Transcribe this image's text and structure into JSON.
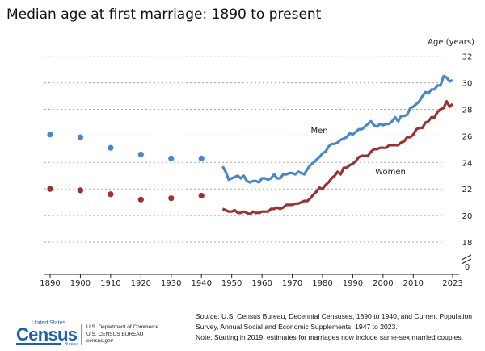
{
  "chart_data": {
    "type": "line",
    "title": "Median age at first marriage: 1890 to present",
    "ylabel": "Age (years)",
    "ylim": [
      0,
      32
    ],
    "y_break": [
      0,
      18
    ],
    "yticks": [
      0,
      18,
      20,
      22,
      24,
      26,
      28,
      30,
      32
    ],
    "xticks": [
      "1890",
      "1900",
      "1910",
      "1920",
      "1930",
      "1940",
      "1950",
      "1960",
      "1970",
      "1980",
      "1990",
      "2000",
      "2010",
      "2023"
    ],
    "grid": true,
    "series": [
      {
        "name": "Men",
        "color": "#4a86c8",
        "decennial": {
          "x": [
            1890,
            1900,
            1910,
            1920,
            1930,
            1940
          ],
          "y": [
            26.1,
            25.9,
            25.1,
            24.6,
            24.3,
            24.3
          ]
        },
        "annual_start": 1947,
        "annual": [
          23.7,
          23.3,
          22.7,
          22.8,
          22.9,
          23.0,
          22.8,
          23.0,
          22.6,
          22.5,
          22.6,
          22.6,
          22.5,
          22.8,
          22.8,
          22.7,
          22.8,
          23.1,
          22.8,
          22.8,
          23.1,
          23.1,
          23.2,
          23.2,
          23.1,
          23.3,
          23.2,
          23.1,
          23.5,
          23.8,
          24.0,
          24.2,
          24.4,
          24.7,
          24.8,
          25.2,
          25.4,
          25.4,
          25.5,
          25.7,
          25.8,
          25.9,
          26.2,
          26.1,
          26.3,
          26.5,
          26.5,
          26.7,
          26.9,
          27.1,
          26.8,
          26.7,
          26.9,
          26.8,
          26.9,
          26.9,
          27.1,
          27.4,
          27.1,
          27.5,
          27.5,
          27.6,
          28.1,
          28.2,
          28.4,
          28.6,
          29.0,
          29.3,
          29.2,
          29.5,
          29.5,
          29.8,
          29.8,
          30.5,
          30.4,
          30.1,
          30.2
        ]
      },
      {
        "name": "Women",
        "color": "#9b3232",
        "decennial": {
          "x": [
            1890,
            1900,
            1910,
            1920,
            1930,
            1940
          ],
          "y": [
            22.0,
            21.9,
            21.6,
            21.2,
            21.3,
            21.5
          ]
        },
        "annual_start": 1947,
        "annual": [
          20.5,
          20.4,
          20.3,
          20.3,
          20.4,
          20.2,
          20.2,
          20.3,
          20.2,
          20.1,
          20.3,
          20.2,
          20.2,
          20.3,
          20.3,
          20.3,
          20.5,
          20.5,
          20.6,
          20.5,
          20.6,
          20.8,
          20.8,
          20.8,
          20.9,
          20.9,
          21.0,
          21.1,
          21.1,
          21.3,
          21.6,
          21.8,
          22.1,
          22.0,
          22.3,
          22.5,
          22.8,
          23.0,
          23.3,
          23.1,
          23.6,
          23.6,
          23.8,
          23.9,
          24.1,
          24.4,
          24.5,
          24.5,
          24.5,
          24.8,
          25.0,
          25.0,
          25.1,
          25.1,
          25.1,
          25.3,
          25.3,
          25.3,
          25.3,
          25.5,
          25.6,
          25.9,
          25.9,
          26.1,
          26.5,
          26.6,
          26.6,
          27.0,
          27.1,
          27.4,
          27.4,
          27.8,
          28.0,
          28.1,
          28.6,
          28.2,
          28.4
        ]
      }
    ]
  },
  "source": {
    "label": "Source",
    "text": ": U.S. Census Bureau, Decennial Censuses, 1890 to 1940, and Current Population Survey, Annual Social and Economic Supplements, 1947 to 2023.",
    "note": "Note: Starting in 2019, estimates for marriages now include same-sex married couples."
  },
  "logo": {
    "top": "United States",
    "main": "Census",
    "bottom": "Bureau"
  },
  "dept": {
    "line1": "U.S. Department of Commerce",
    "line2": "U.S. CENSUS BUREAU",
    "line3": "census.gov"
  }
}
